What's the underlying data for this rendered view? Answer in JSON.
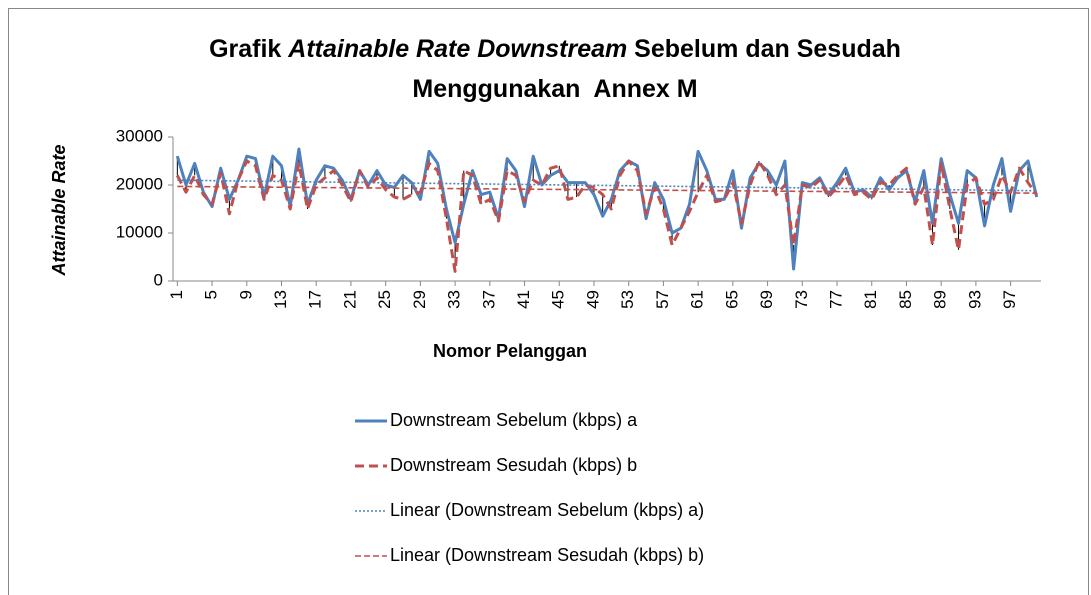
{
  "chart_data": {
    "type": "line",
    "title": [
      {
        "text": "Grafik ",
        "italic": false,
        "line": 0
      },
      {
        "text": "Attainable Rate Downstream",
        "italic": true,
        "line": 0
      },
      {
        "text": " Sebelum dan Sesudah",
        "italic": false,
        "line": 0
      },
      {
        "text": "Menggunakan  Annex M",
        "italic": false,
        "line": 1
      }
    ],
    "xlabel": "Nomor Pelanggan",
    "ylabel": "Attainable Rate",
    "categories": [
      "1",
      null,
      null,
      null,
      "5",
      null,
      null,
      null,
      "9",
      null,
      null,
      null,
      "13",
      null,
      null,
      null,
      "17",
      null,
      null,
      null,
      "21",
      null,
      null,
      null,
      "25",
      null,
      null,
      null,
      "29",
      null,
      null,
      null,
      "33",
      null,
      null,
      null,
      "37",
      null,
      null,
      null,
      "41",
      null,
      null,
      null,
      "45",
      null,
      null,
      null,
      "49",
      null,
      null,
      null,
      "53",
      null,
      null,
      null,
      "57",
      null,
      null,
      null,
      "61",
      null,
      null,
      null,
      "65",
      null,
      null,
      null,
      "69",
      null,
      null,
      null,
      "73",
      null,
      null,
      null,
      "77",
      null,
      null,
      null,
      "81",
      null,
      null,
      null,
      "85",
      null,
      null,
      null,
      "89",
      null,
      null,
      null,
      "93",
      null,
      null,
      null,
      "97",
      null,
      null,
      null
    ],
    "series": [
      {
        "name": "Downstream Sebelum (kbps) a",
        "color": "#4f81bd",
        "style": "solid",
        "values": [
          26000,
          20000,
          24500,
          18500,
          15500,
          23500,
          17000,
          21000,
          26000,
          25500,
          17500,
          26000,
          24000,
          15500,
          27500,
          16000,
          21000,
          24000,
          23500,
          21000,
          17000,
          23000,
          20000,
          23000,
          20000,
          19500,
          22000,
          20500,
          17000,
          27000,
          24500,
          15000,
          8000,
          16000,
          23000,
          18000,
          18500,
          13000,
          25500,
          23000,
          15500,
          26000,
          20000,
          22000,
          23000,
          20500,
          20500,
          20500,
          18000,
          13500,
          17000,
          23000,
          25000,
          24000,
          13000,
          20500,
          17000,
          10000,
          11000,
          16000,
          27000,
          23000,
          17000,
          17000,
          23000,
          11000,
          21500,
          24500,
          23000,
          20000,
          25000,
          2500,
          20500,
          20000,
          21500,
          18000,
          20500,
          23500,
          18500,
          19000,
          17500,
          21500,
          19000,
          21500,
          23000,
          16500,
          23000,
          12000,
          25500,
          18000,
          12000,
          23000,
          21500,
          11500,
          20000,
          25500,
          14500,
          23000,
          25000,
          17500
        ]
      },
      {
        "name": "Downstream Sesudah (kbps) b",
        "color": "#c0504d",
        "style": "dashed",
        "values": [
          22000,
          18500,
          22000,
          18000,
          16000,
          22500,
          14000,
          21000,
          25000,
          24000,
          17000,
          22000,
          21000,
          15000,
          24500,
          15000,
          20000,
          21500,
          23000,
          20000,
          16500,
          23000,
          19500,
          21500,
          19000,
          17500,
          17000,
          18000,
          18500,
          24500,
          23000,
          13000,
          2000,
          23000,
          22000,
          16000,
          17000,
          12500,
          23000,
          22000,
          16500,
          21000,
          20000,
          23500,
          24000,
          17000,
          17500,
          20000,
          19500,
          18000,
          15000,
          22000,
          25000,
          23000,
          14000,
          19500,
          15000,
          7500,
          11000,
          14500,
          18500,
          22000,
          16500,
          17000,
          20500,
          12000,
          20000,
          25000,
          22000,
          18000,
          20000,
          7500,
          20000,
          19500,
          21000,
          17500,
          19500,
          22000,
          18000,
          18500,
          17000,
          20500,
          20000,
          22000,
          23500,
          16000,
          19500,
          7500,
          24500,
          15000,
          6500,
          20000,
          21500,
          16000,
          17000,
          22000,
          18500,
          23500,
          20500,
          18000
        ]
      }
    ],
    "trendlines": [
      {
        "name": "Linear (Downstream Sebelum (kbps) a)",
        "color": "#4f81bd",
        "style": "dotted",
        "values": [
          21000,
          18800
        ]
      },
      {
        "name": "Linear (Downstream Sesudah (kbps) b)",
        "color": "#c0504d",
        "style": "dashed-thin",
        "values": [
          19700,
          18300
        ]
      }
    ],
    "drop_lines": true,
    "ylim": [
      0,
      30000
    ],
    "yticks": [
      0,
      10000,
      20000,
      30000
    ],
    "legend": "bottom"
  }
}
